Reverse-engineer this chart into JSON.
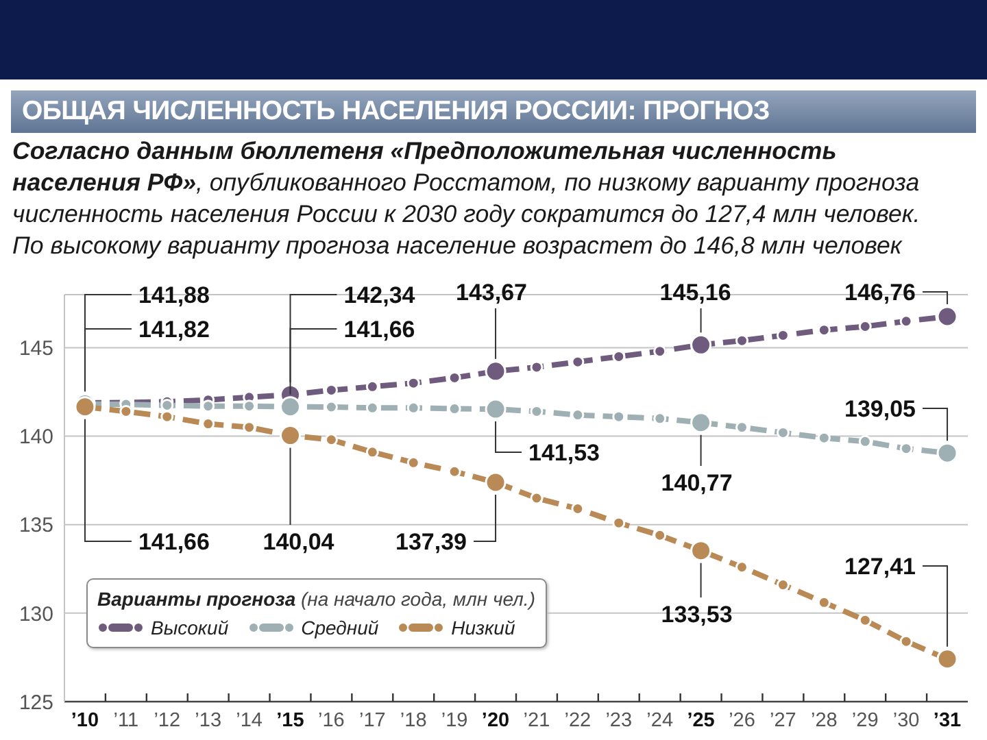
{
  "chart_data": {
    "type": "line",
    "title": "ОБЩАЯ ЧИСЛЕННОСТЬ НАСЕЛЕНИЯ РОССИИ: ПРОГНОЗ",
    "subtitle": "Согласно данным бюллетеня «Предположительная численность населения РФ», опубликованного Росстатом, по низкому варианту прогноза численность населения России к 2030 году сократится до 127,4 млн человек. По высокому варианту прогноза население возрастет до 146,8 млн человек",
    "legend_title": "Варианты прогноза (на начало года, млн чел.)",
    "categories": [
      "’10",
      "’11",
      "’12",
      "’13",
      "’14",
      "’15",
      "’16",
      "’17",
      "’18",
      "’19",
      "’20",
      "’21",
      "’22",
      "’23",
      "’24",
      "’25",
      "’26",
      "’27",
      "’28",
      "’29",
      "’30",
      "’31"
    ],
    "series": [
      {
        "name": "Высокий",
        "color": "#6f5b7d",
        "values": [
          141.88,
          141.9,
          141.95,
          142.05,
          142.2,
          142.34,
          142.6,
          142.8,
          143.0,
          143.3,
          143.67,
          143.9,
          144.2,
          144.5,
          144.8,
          145.16,
          145.4,
          145.7,
          146.0,
          146.2,
          146.5,
          146.76
        ],
        "value_labels": [
          "141,88",
          null,
          null,
          null,
          null,
          "142,34",
          null,
          null,
          null,
          null,
          "143,67",
          null,
          null,
          null,
          null,
          "145,16",
          null,
          null,
          null,
          null,
          null,
          "146,76"
        ]
      },
      {
        "name": "Средний",
        "color": "#9fb0b5",
        "values": [
          141.82,
          141.8,
          141.75,
          141.7,
          141.7,
          141.66,
          141.65,
          141.6,
          141.6,
          141.55,
          141.53,
          141.4,
          141.2,
          141.1,
          141.0,
          140.77,
          140.5,
          140.2,
          139.9,
          139.7,
          139.3,
          139.05
        ],
        "value_labels": [
          "141,82",
          null,
          null,
          null,
          null,
          "141,66",
          null,
          null,
          null,
          null,
          "141,53",
          null,
          null,
          null,
          null,
          "140,77",
          null,
          null,
          null,
          null,
          null,
          "139,05"
        ]
      },
      {
        "name": "Низкий",
        "color": "#b98a55",
        "values": [
          141.66,
          141.4,
          141.1,
          140.7,
          140.5,
          140.04,
          139.8,
          139.1,
          138.5,
          138.0,
          137.39,
          136.5,
          135.9,
          135.1,
          134.4,
          133.53,
          132.6,
          131.6,
          130.6,
          129.6,
          128.4,
          127.41
        ],
        "value_labels": [
          "141,66",
          null,
          null,
          null,
          null,
          "140,04",
          null,
          null,
          null,
          null,
          "137,39",
          null,
          null,
          null,
          null,
          "133,53",
          null,
          null,
          null,
          null,
          null,
          "127,41"
        ]
      }
    ],
    "ylim": [
      125,
      148
    ],
    "yticks": [
      125,
      130,
      135,
      140,
      145
    ],
    "grid": "y",
    "legend": "bottom left",
    "marker": "circle",
    "line_style": "dashed"
  }
}
